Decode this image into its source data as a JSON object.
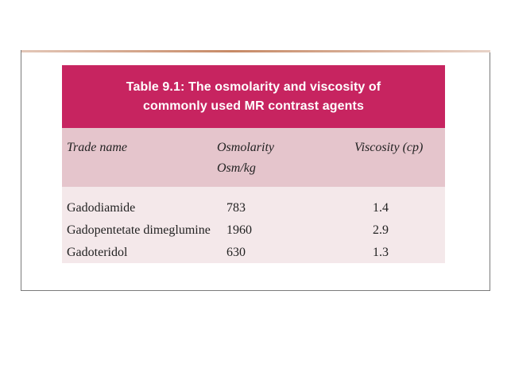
{
  "table": {
    "caption_line1": "Table 9.1: The osmolarity and viscosity of",
    "caption_line2": "commonly used MR contrast agents",
    "headers": {
      "trade_name": "Trade name",
      "osmolarity_line1": "Osmolarity",
      "osmolarity_line2": "Osm/kg",
      "viscosity": "Viscosity (cp)"
    },
    "rows": [
      {
        "name": "Gadodiamide",
        "osmolarity": "783",
        "viscosity": "1.4"
      },
      {
        "name": "Gadopentetate dimeglumine",
        "osmolarity": "1960",
        "viscosity": "2.9"
      },
      {
        "name": "Gadoteridol",
        "osmolarity": "630",
        "viscosity": "1.3"
      }
    ]
  },
  "colors": {
    "caption_bg": "#c72460",
    "header_bg": "#e5c5cc",
    "body_bg": "#f4e8ea"
  }
}
